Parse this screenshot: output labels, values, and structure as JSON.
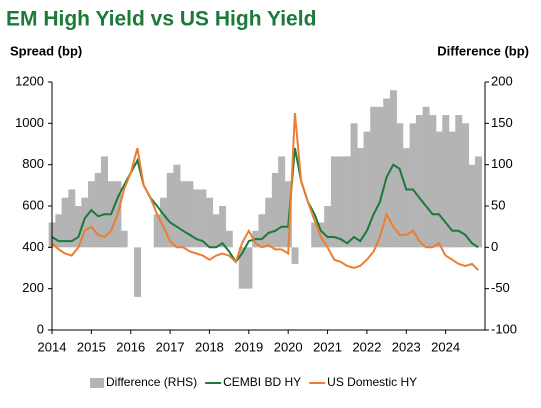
{
  "chart_data": {
    "type": "combo",
    "title": "EM High Yield vs US High Yield",
    "y_label": "Spread (bp)",
    "y2_label": "Difference (bp)",
    "x": [
      2014,
      2014.17,
      2014.33,
      2014.5,
      2014.67,
      2014.83,
      2015,
      2015.17,
      2015.33,
      2015.5,
      2015.67,
      2015.83,
      2016,
      2016.17,
      2016.33,
      2016.5,
      2016.67,
      2016.83,
      2017,
      2017.17,
      2017.33,
      2017.5,
      2017.67,
      2017.83,
      2018,
      2018.17,
      2018.33,
      2018.5,
      2018.67,
      2018.83,
      2019,
      2019.17,
      2019.33,
      2019.5,
      2019.67,
      2019.83,
      2020,
      2020.17,
      2020.33,
      2020.5,
      2020.67,
      2020.83,
      2021,
      2021.17,
      2021.33,
      2021.5,
      2021.67,
      2021.83,
      2022,
      2022.17,
      2022.33,
      2022.5,
      2022.67,
      2022.83,
      2023,
      2023.17,
      2023.33,
      2023.5,
      2023.67,
      2023.83,
      2024,
      2024.17,
      2024.33,
      2024.5,
      2024.67,
      2024.83
    ],
    "xlim": [
      2014,
      2025
    ],
    "xticks": [
      2014,
      2015,
      2016,
      2017,
      2018,
      2019,
      2020,
      2021,
      2022,
      2023,
      2024
    ],
    "ylim": [
      0,
      1200
    ],
    "yticks": [
      0,
      200,
      400,
      600,
      800,
      1000,
      1200
    ],
    "y2lim": [
      -100,
      200
    ],
    "y2ticks": [
      -100,
      -50,
      0,
      50,
      100,
      150,
      200
    ],
    "series": [
      {
        "name": "Difference (RHS)",
        "color": "#b4b4b4",
        "axis": "y2",
        "kind": "area",
        "values": [
          30,
          40,
          60,
          70,
          50,
          60,
          80,
          90,
          110,
          80,
          80,
          20,
          0,
          -60,
          0,
          0,
          40,
          60,
          90,
          100,
          80,
          80,
          70,
          70,
          60,
          40,
          50,
          20,
          0,
          -50,
          -50,
          20,
          40,
          60,
          90,
          110,
          80,
          -20,
          0,
          0,
          30,
          30,
          50,
          110,
          110,
          110,
          150,
          120,
          140,
          170,
          170,
          180,
          190,
          150,
          120,
          150,
          160,
          170,
          160,
          140,
          160,
          140,
          160,
          150,
          100,
          110
        ]
      },
      {
        "name": "CEMBI BD HY",
        "color": "#1b7a3a",
        "kind": "line",
        "values": [
          450,
          430,
          430,
          430,
          450,
          540,
          580,
          550,
          560,
          560,
          640,
          700,
          760,
          820,
          700,
          640,
          600,
          560,
          520,
          500,
          480,
          460,
          440,
          430,
          400,
          400,
          420,
          380,
          330,
          370,
          430,
          440,
          440,
          470,
          480,
          500,
          500,
          880,
          720,
          620,
          560,
          480,
          450,
          450,
          440,
          420,
          450,
          430,
          480,
          560,
          620,
          740,
          800,
          780,
          680,
          680,
          640,
          600,
          560,
          560,
          520,
          480,
          480,
          460,
          420,
          400
        ]
      },
      {
        "name": "US Domestic HY",
        "color": "#ed7d31",
        "kind": "line",
        "values": [
          420,
          390,
          370,
          360,
          400,
          480,
          500,
          460,
          450,
          480,
          560,
          680,
          760,
          880,
          700,
          640,
          560,
          500,
          430,
          400,
          400,
          380,
          370,
          360,
          340,
          360,
          370,
          360,
          330,
          420,
          480,
          420,
          400,
          410,
          390,
          390,
          370,
          1050,
          720,
          620,
          530,
          450,
          400,
          340,
          330,
          310,
          300,
          310,
          340,
          380,
          450,
          560,
          500,
          460,
          460,
          480,
          430,
          400,
          400,
          420,
          360,
          340,
          320,
          310,
          320,
          290
        ]
      }
    ]
  }
}
